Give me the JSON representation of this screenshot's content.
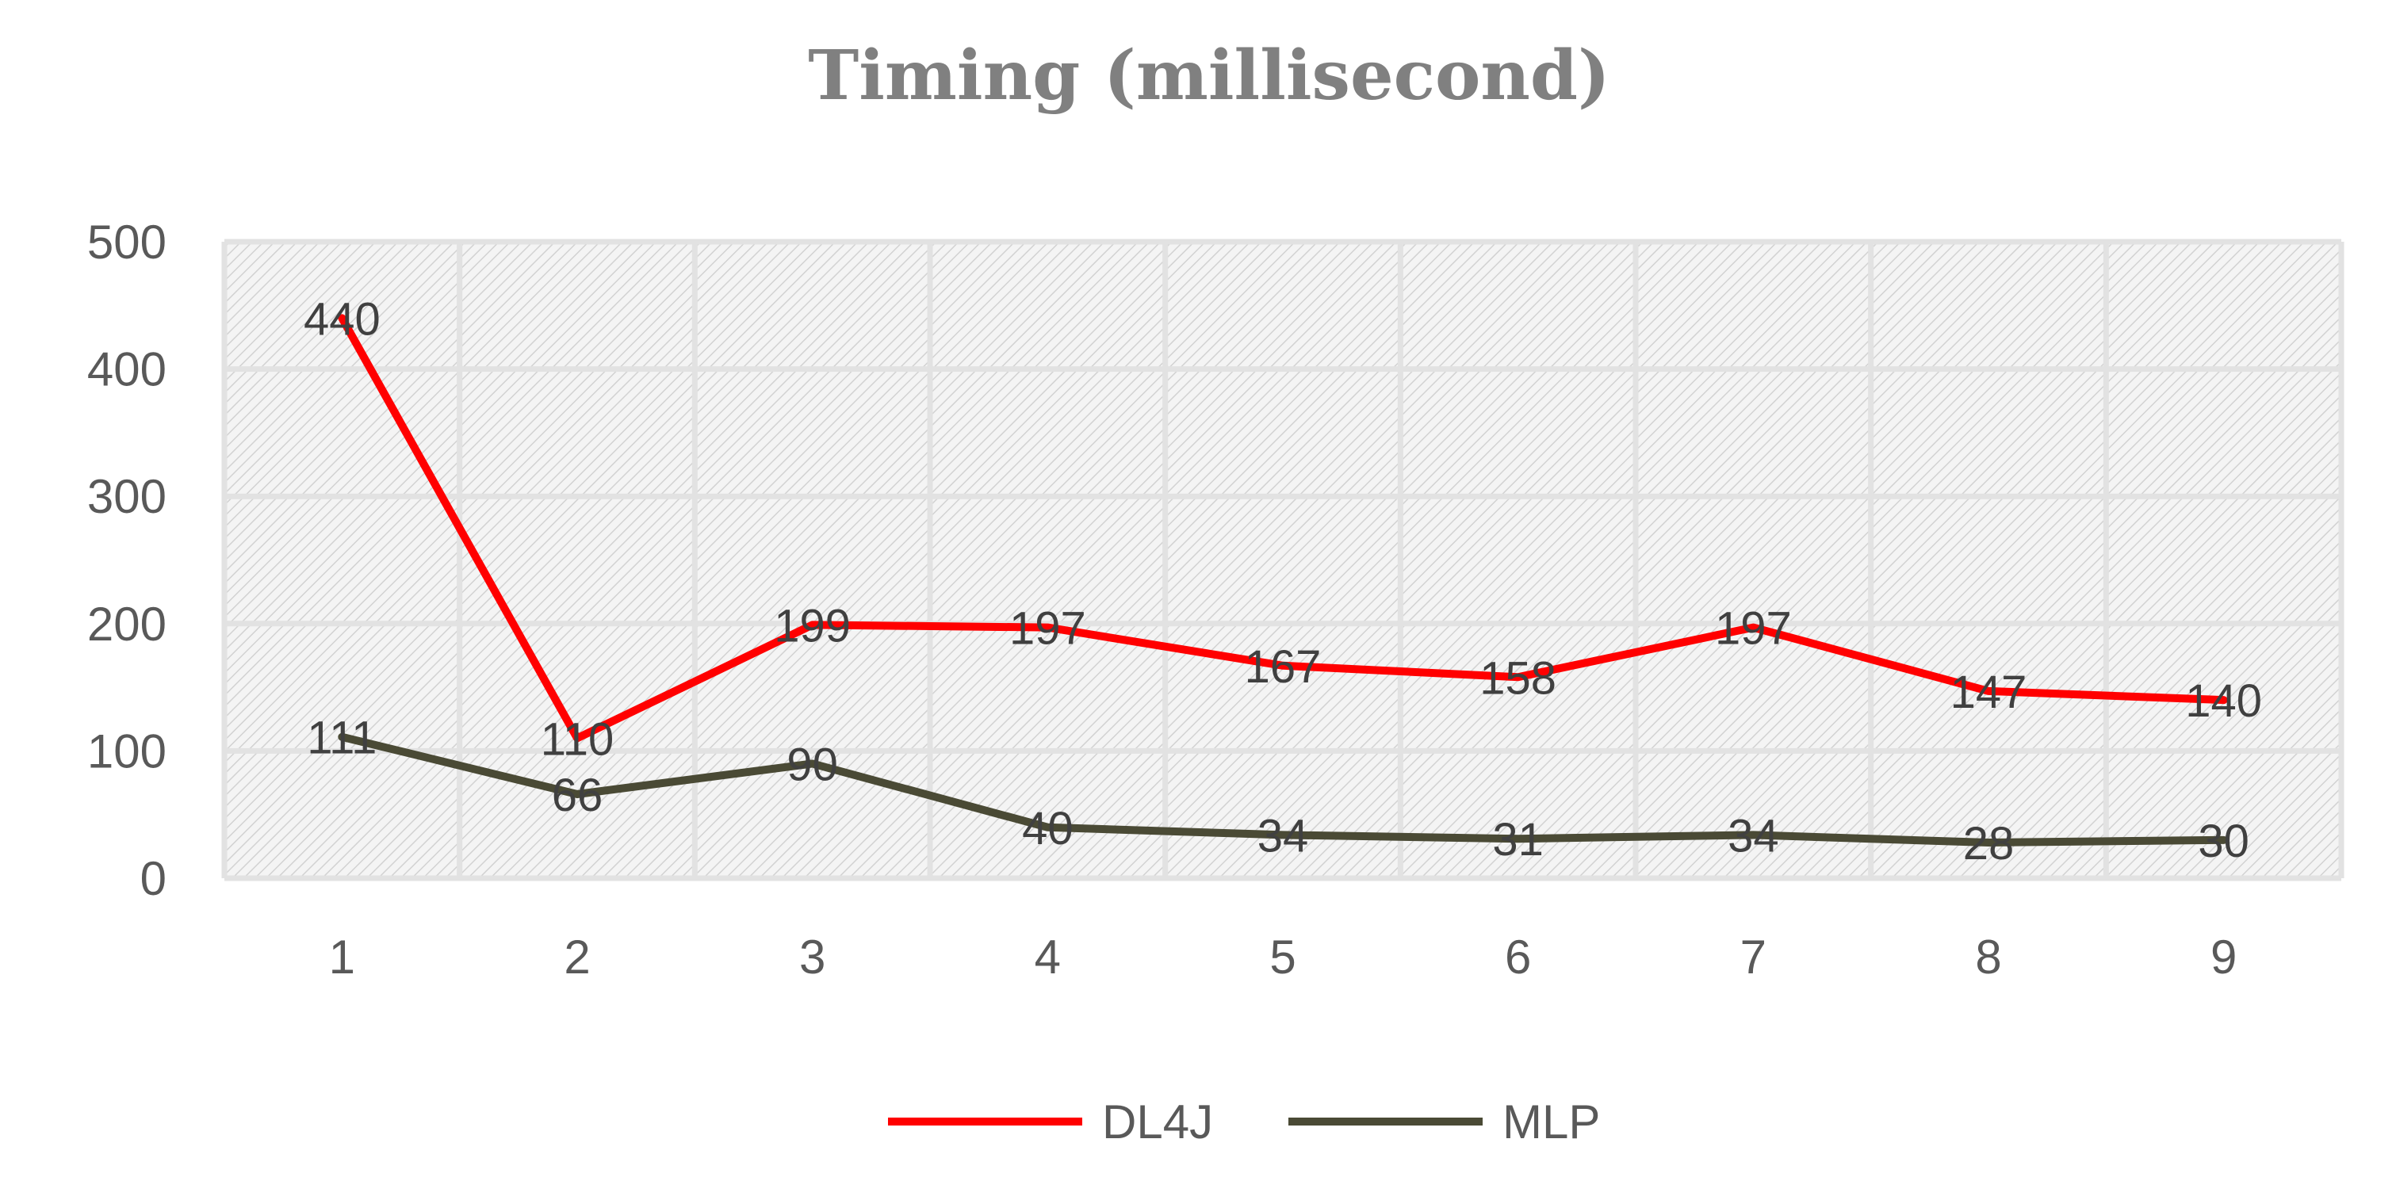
{
  "chart_data": {
    "type": "line",
    "title": "Timing (millisecond)",
    "xlabel": "",
    "ylabel": "",
    "categories": [
      "1",
      "2",
      "3",
      "4",
      "5",
      "6",
      "7",
      "8",
      "9"
    ],
    "ylim": [
      0,
      500
    ],
    "yticks": [
      "0",
      "100",
      "200",
      "300",
      "400",
      "500"
    ],
    "grid": true,
    "legend_position": "bottom",
    "series": [
      {
        "name": "DL4J",
        "color": "#ff0000",
        "values": [
          440,
          110,
          199,
          197,
          167,
          158,
          197,
          147,
          140
        ]
      },
      {
        "name": "MLP",
        "color": "#4a4a35",
        "values": [
          111,
          66,
          90,
          40,
          34,
          31,
          34,
          28,
          30
        ]
      }
    ]
  }
}
